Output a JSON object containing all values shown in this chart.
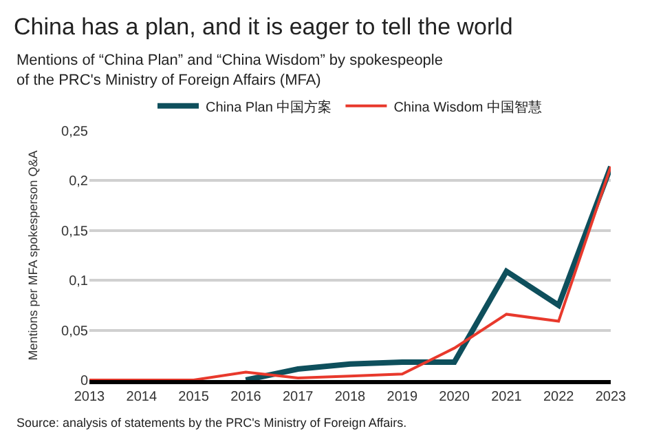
{
  "chart_data": {
    "type": "line",
    "title": "China has a plan, and it is eager to tell the world",
    "subtitle": "Mentions of “China Plan” and “China Wisdom” by spokespeople\nof the PRC's Ministry of Foreign Affairs (MFA)",
    "ylabel": "Mentions per MFA spokesperson Q&A",
    "annotations": [
      "Source: analysis of statements by the PRC's Ministry of Foreign Affairs."
    ],
    "categories": [
      "2013",
      "2014",
      "2015",
      "2016",
      "2017",
      "2018",
      "2019",
      "2020",
      "2021",
      "2022",
      "2023"
    ],
    "series": [
      {
        "name": "China Plan 中国方案",
        "color": "#0e4f5c",
        "values": [
          null,
          null,
          null,
          0,
          0.011,
          0.016,
          0.018,
          0.018,
          0.109,
          0.075,
          0.214
        ]
      },
      {
        "name": "China Wisdom 中国智慧",
        "color": "#e8392c",
        "values": [
          0,
          0,
          0,
          0.008,
          0.002,
          0.004,
          0.006,
          0.032,
          0.066,
          0.059,
          0.214
        ]
      }
    ],
    "ylim": [
      0,
      0.25
    ],
    "yticks": [
      {
        "value": 0,
        "label": "0"
      },
      {
        "value": 0.05,
        "label": "0,05"
      },
      {
        "value": 0.1,
        "label": "0,1"
      },
      {
        "value": 0.15,
        "label": "0,15"
      },
      {
        "value": 0.2,
        "label": "0,2"
      },
      {
        "value": 0.25,
        "label": "0,25"
      }
    ],
    "grid": "y",
    "legend": "top",
    "marker": "none",
    "line_style": "solid"
  }
}
